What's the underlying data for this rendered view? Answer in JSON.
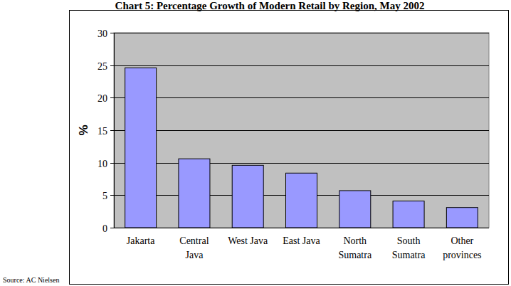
{
  "chart_data": {
    "type": "bar",
    "title": "Chart 5: Percentage Growth of Modern Retail by Region, May 2002",
    "y_label": "%",
    "source": "Source: AC Nielsen",
    "categories": [
      "Jakarta",
      "Central Java",
      "West Java",
      "East Java",
      "North Sumatra",
      "South Sumatra",
      "Other provinces"
    ],
    "values": [
      24.6,
      10.6,
      9.6,
      8.4,
      5.7,
      4.1,
      3.1
    ],
    "color": "#9999ff",
    "ylim": [
      0,
      30
    ],
    "yticks": [
      0,
      5,
      10,
      15,
      20,
      25,
      30
    ],
    "grid": true
  }
}
